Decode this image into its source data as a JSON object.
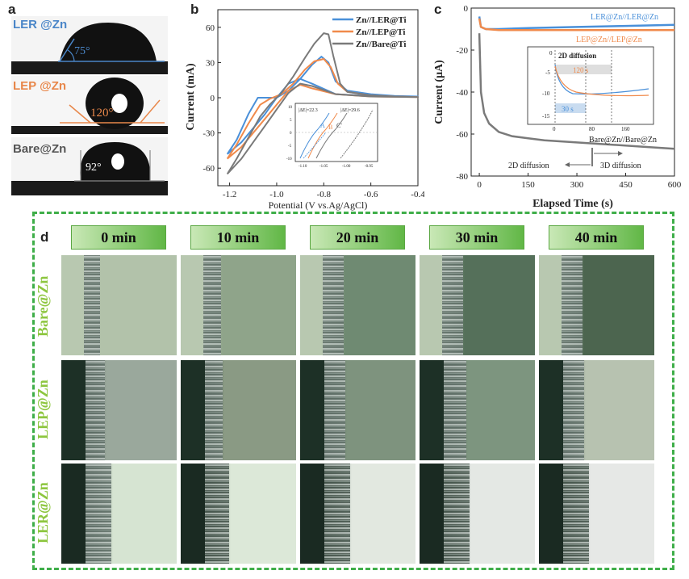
{
  "panels": {
    "a": "a",
    "b": "b",
    "c": "c",
    "d": "d"
  },
  "panel_a": {
    "items": [
      {
        "label": "LER @Zn",
        "angle": "75°",
        "color": "#4a86c8"
      },
      {
        "label": "LEP @Zn",
        "angle": "120°",
        "color": "#e8874a"
      },
      {
        "label": "Bare@Zn",
        "angle": "92°",
        "color": "#555555"
      }
    ]
  },
  "chart_data": [
    {
      "type": "line",
      "panel": "b",
      "xlabel": "Potential (V vs.Ag/AgCl)",
      "ylabel": "Current (mA)",
      "xlim": [
        -1.25,
        -0.4
      ],
      "ylim": [
        -75,
        75
      ],
      "xticks": [
        "-1.2",
        "-1.0",
        "-0.8",
        "-0.6",
        "-0.4"
      ],
      "yticks": [
        "60",
        "30",
        "0",
        "-30",
        "-60"
      ],
      "legend_position": "top-right",
      "series": [
        {
          "name": "Zn//LER@Ti",
          "color": "#4a90d9",
          "forward": [
            [
              -1.21,
              -48
            ],
            [
              -1.17,
              -36
            ],
            [
              -1.12,
              -14
            ],
            [
              -1.08,
              0
            ],
            [
              -1.0,
              0
            ],
            [
              -0.95,
              6
            ],
            [
              -0.9,
              16
            ],
            [
              -0.85,
              28
            ],
            [
              -0.81,
              35
            ],
            [
              -0.78,
              30
            ],
            [
              -0.75,
              14
            ],
            [
              -0.7,
              6
            ],
            [
              -0.6,
              3
            ],
            [
              -0.5,
              1.5
            ],
            [
              -0.4,
              1
            ]
          ],
          "reverse": [
            [
              -0.4,
              1
            ],
            [
              -0.6,
              1.5
            ],
            [
              -0.75,
              3
            ],
            [
              -0.85,
              12
            ],
            [
              -0.9,
              16
            ],
            [
              -0.95,
              12
            ],
            [
              -1.0,
              0
            ],
            [
              -1.05,
              -14
            ],
            [
              -1.1,
              -26
            ],
            [
              -1.15,
              -38
            ],
            [
              -1.21,
              -48
            ]
          ]
        },
        {
          "name": "Zn//LEP@Ti",
          "color": "#f08a4b",
          "forward": [
            [
              -1.21,
              -52
            ],
            [
              -1.17,
              -40
            ],
            [
              -1.12,
              -22
            ],
            [
              -1.07,
              -6
            ],
            [
              -1.03,
              -1
            ],
            [
              -0.98,
              3
            ],
            [
              -0.93,
              12
            ],
            [
              -0.88,
              24
            ],
            [
              -0.84,
              31
            ],
            [
              -0.8,
              33
            ],
            [
              -0.77,
              26
            ],
            [
              -0.74,
              12
            ],
            [
              -0.7,
              5
            ],
            [
              -0.6,
              2
            ],
            [
              -0.5,
              1
            ],
            [
              -0.4,
              0.5
            ]
          ],
          "reverse": [
            [
              -0.4,
              0.5
            ],
            [
              -0.6,
              1
            ],
            [
              -0.75,
              3
            ],
            [
              -0.85,
              8
            ],
            [
              -0.9,
              11
            ],
            [
              -0.95,
              6
            ],
            [
              -1.0,
              -6
            ],
            [
              -1.05,
              -18
            ],
            [
              -1.1,
              -30
            ],
            [
              -1.15,
              -42
            ],
            [
              -1.21,
              -52
            ]
          ]
        },
        {
          "name": "Zn//Bare@Ti",
          "color": "#7a7a7a",
          "forward": [
            [
              -1.21,
              -65
            ],
            [
              -1.17,
              -52
            ],
            [
              -1.12,
              -34
            ],
            [
              -1.07,
              -16
            ],
            [
              -1.03,
              -6
            ],
            [
              -0.98,
              4
            ],
            [
              -0.93,
              18
            ],
            [
              -0.88,
              34
            ],
            [
              -0.84,
              46
            ],
            [
              -0.8,
              55
            ],
            [
              -0.78,
              54
            ],
            [
              -0.76,
              36
            ],
            [
              -0.73,
              12
            ],
            [
              -0.7,
              5
            ],
            [
              -0.6,
              2
            ],
            [
              -0.5,
              1
            ],
            [
              -0.4,
              0.5
            ]
          ],
          "reverse": [
            [
              -0.4,
              0.5
            ],
            [
              -0.6,
              1
            ],
            [
              -0.75,
              3
            ],
            [
              -0.85,
              10
            ],
            [
              -0.9,
              12
            ],
            [
              -0.95,
              4
            ],
            [
              -1.0,
              -10
            ],
            [
              -1.05,
              -24
            ],
            [
              -1.1,
              -38
            ],
            [
              -1.15,
              -52
            ],
            [
              -1.21,
              -65
            ]
          ]
        }
      ],
      "inset": {
        "annotations": [
          "|ΔE|=22.3",
          "|ΔE|=29.6",
          "A",
          "B",
          "C'"
        ],
        "xticks": [
          "-1.10",
          "-1.05",
          "-1.00",
          "-0.95"
        ],
        "yticks": [
          "10",
          "5",
          "0",
          "-5",
          "-10"
        ]
      }
    },
    {
      "type": "line",
      "panel": "c",
      "xlabel": "Elapsed Time (s)",
      "ylabel": "Current (μA)",
      "xlim": [
        -25,
        600
      ],
      "ylim": [
        -80,
        0
      ],
      "xticks": [
        "0",
        "150",
        "300",
        "450",
        "600"
      ],
      "yticks": [
        "0",
        "-20",
        "-40",
        "-60",
        "-80"
      ],
      "series": [
        {
          "name": "LER@Zn//LER@Zn",
          "color": "#4a90d9",
          "values": [
            [
              0,
              -4
            ],
            [
              5,
              -9
            ],
            [
              20,
              -10
            ],
            [
              60,
              -10
            ],
            [
              150,
              -9.5
            ],
            [
              300,
              -9
            ],
            [
              450,
              -8.5
            ],
            [
              600,
              -8
            ]
          ]
        },
        {
          "name": "LEP@Zn//LEP@Zn",
          "color": "#f08a4b",
          "values": [
            [
              0,
              -5
            ],
            [
              5,
              -9
            ],
            [
              20,
              -10
            ],
            [
              60,
              -10.5
            ],
            [
              150,
              -10.5
            ],
            [
              300,
              -10.5
            ],
            [
              450,
              -10.5
            ],
            [
              600,
              -10.5
            ]
          ]
        },
        {
          "name": "Bare@Zn//Bare@Zn",
          "color": "#7a7a7a",
          "values": [
            [
              0,
              -12
            ],
            [
              5,
              -40
            ],
            [
              15,
              -50
            ],
            [
              30,
              -55
            ],
            [
              60,
              -59
            ],
            [
              100,
              -61
            ],
            [
              150,
              -62
            ],
            [
              200,
              -63
            ],
            [
              300,
              -64
            ],
            [
              400,
              -65
            ],
            [
              500,
              -66
            ],
            [
              600,
              -67
            ]
          ]
        }
      ],
      "annotations": [
        "2D diffusion",
        "3D diffusion"
      ],
      "inset": {
        "title": "2D diffusion",
        "labels": [
          "120 s",
          "30 s"
        ],
        "xticks": [
          "0",
          "80",
          "160"
        ],
        "yticks": [
          "0",
          "-5",
          "-10",
          "-15"
        ]
      }
    }
  ],
  "panel_d": {
    "times": [
      "0 min",
      "10 min",
      "20 min",
      "30 min",
      "40 min"
    ],
    "rows": [
      "Bare@Zn",
      "LEP@Zn",
      "LER@Zn"
    ]
  }
}
